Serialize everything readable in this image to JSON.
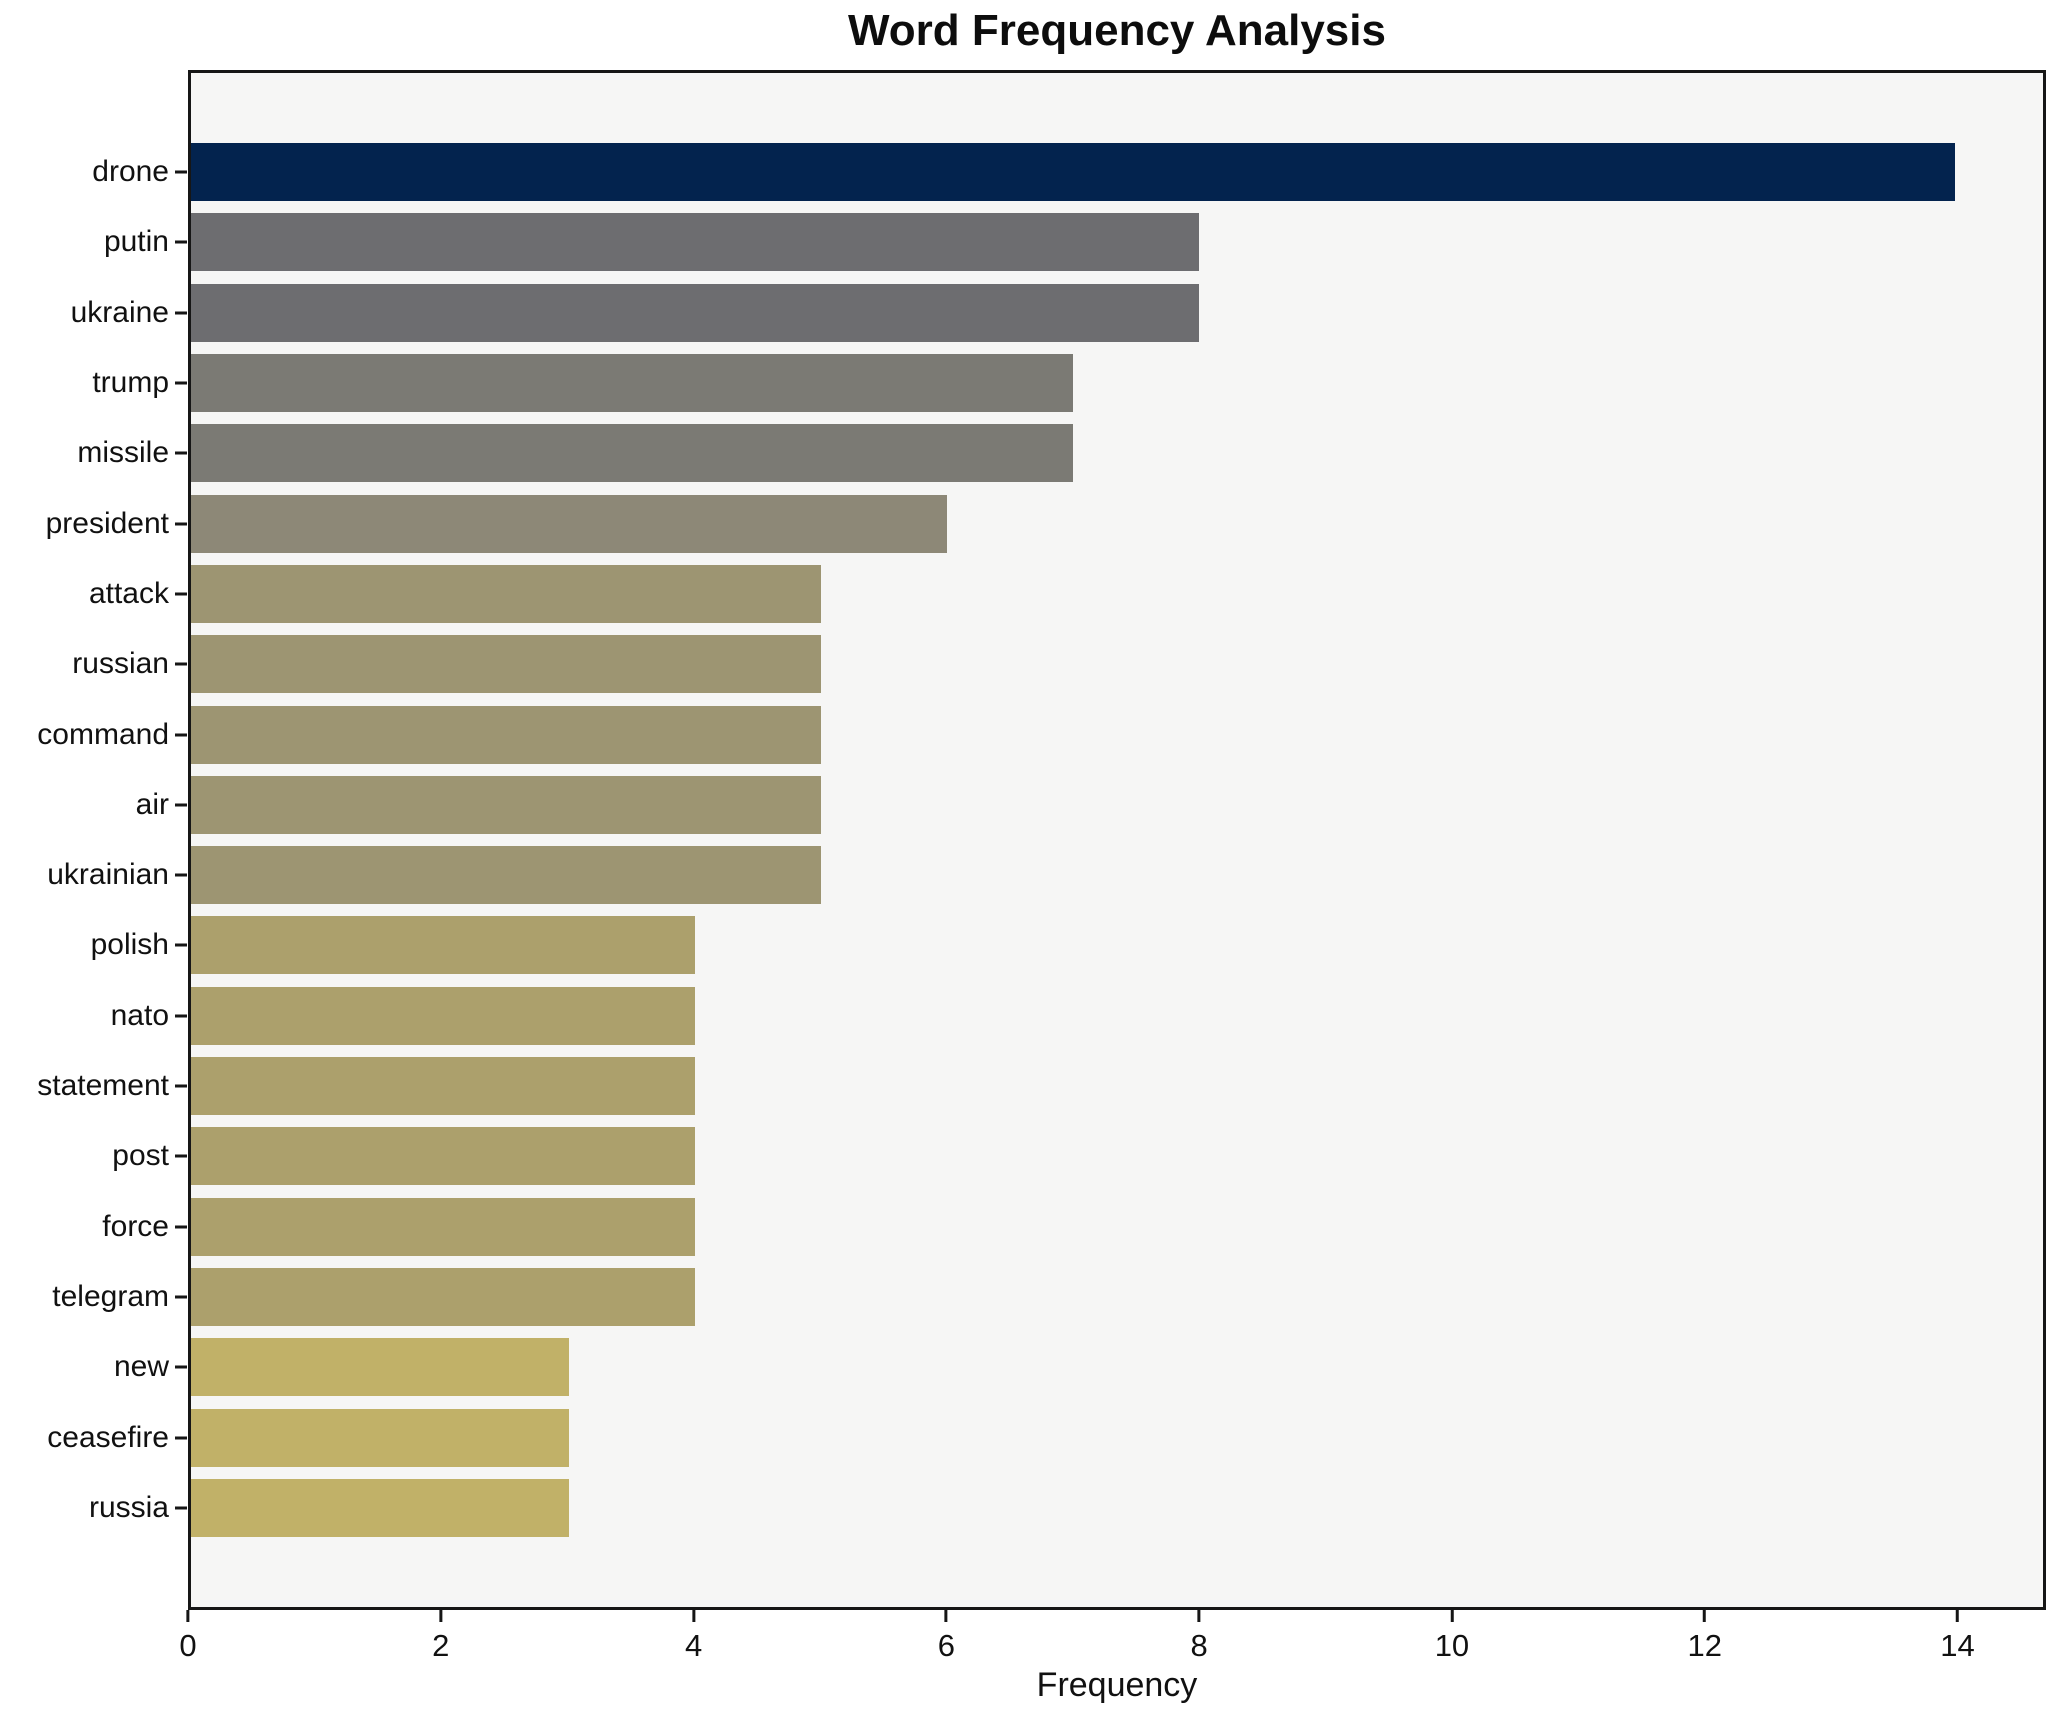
{
  "chart_data": {
    "type": "bar",
    "orientation": "horizontal",
    "title": "Word Frequency Analysis",
    "xlabel": "Frequency",
    "ylabel": "",
    "categories": [
      "drone",
      "putin",
      "ukraine",
      "trump",
      "missile",
      "president",
      "attack",
      "russian",
      "command",
      "air",
      "ukrainian",
      "polish",
      "nato",
      "statement",
      "post",
      "force",
      "telegram",
      "new",
      "ceasefire",
      "russia"
    ],
    "values": [
      14,
      8,
      8,
      7,
      7,
      6,
      5,
      5,
      5,
      5,
      5,
      4,
      4,
      4,
      4,
      4,
      4,
      3,
      3,
      3
    ],
    "bar_colors": [
      "#03234e",
      "#6d6d70",
      "#6d6d70",
      "#7b7a74",
      "#7b7a74",
      "#8d8877",
      "#9d9572",
      "#9d9572",
      "#9d9572",
      "#9d9572",
      "#9d9572",
      "#aca06c",
      "#aca06c",
      "#aca06c",
      "#aca06c",
      "#aca06c",
      "#aca06c",
      "#c1b168",
      "#c1b168",
      "#c1b168"
    ],
    "xticks": [
      0,
      2,
      4,
      6,
      8,
      10,
      12,
      14
    ],
    "xlim": [
      0,
      14.7
    ],
    "grid": false,
    "legend": "none",
    "figure_bg": "#ffffff",
    "plot_bg": "#f6f6f5",
    "spine_color": "#161616"
  }
}
